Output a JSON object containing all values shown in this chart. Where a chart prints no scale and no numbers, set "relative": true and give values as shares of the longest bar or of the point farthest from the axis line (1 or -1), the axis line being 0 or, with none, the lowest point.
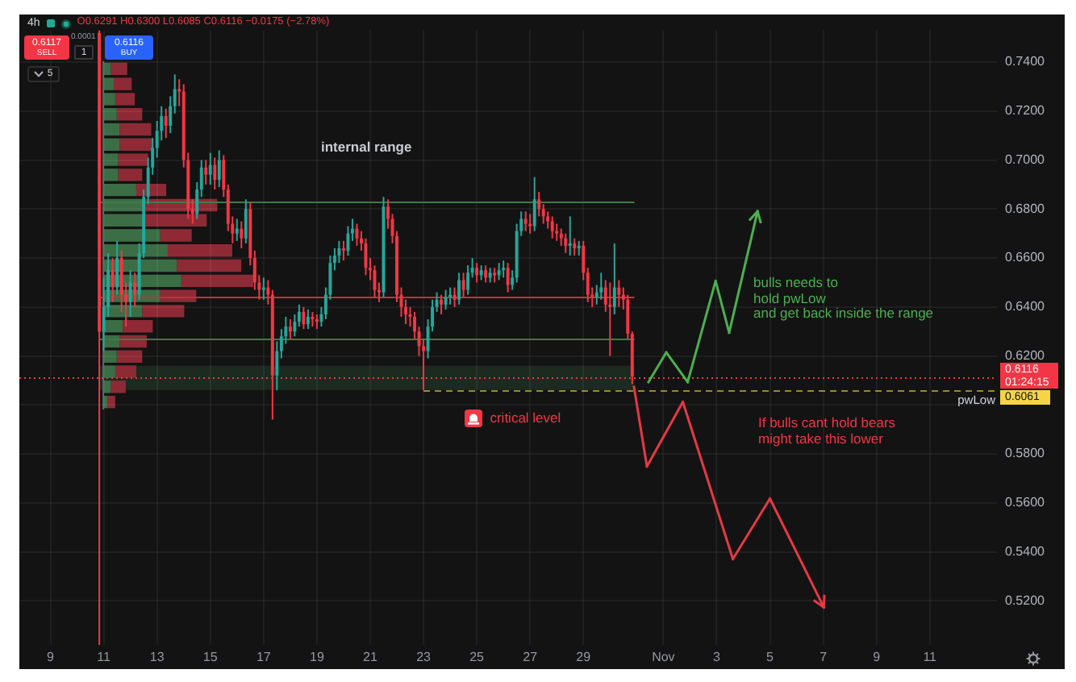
{
  "chart_data": [
    {
      "type": "candlestick",
      "title": "4h",
      "x": [
        "--10-10T20:00",
        "--10-11T00:00",
        "--10-11T04:00",
        "--10-11T08:00",
        "--10-11T12:00",
        "--10-11T16:00",
        "--10-11T20:00",
        "--10-12T00:00",
        "--10-12T04:00",
        "--10-12T08:00",
        "--10-12T12:00",
        "--10-12T16:00",
        "--10-12T20:00",
        "--10-13T00:00",
        "--10-13T04:00",
        "--10-13T08:00",
        "--10-13T12:00",
        "--10-13T16:00",
        "--10-13T20:00",
        "--10-14T00:00",
        "--10-14T04:00",
        "--10-14T08:00",
        "--10-14T12:00",
        "--10-14T16:00",
        "--10-14T20:00",
        "--10-15T00:00",
        "--10-15T04:00",
        "--10-15T08:00",
        "--10-15T12:00",
        "--10-15T16:00",
        "--10-15T20:00",
        "--10-16T00:00",
        "--10-16T04:00",
        "--10-16T08:00",
        "--10-16T12:00",
        "--10-16T16:00",
        "--10-16T20:00",
        "--10-17T00:00",
        "--10-17T04:00",
        "--10-17T08:00",
        "--10-17T12:00",
        "--10-17T16:00",
        "--10-17T20:00",
        "--10-18T00:00",
        "--10-18T04:00",
        "--10-18T08:00",
        "--10-18T12:00",
        "--10-18T16:00",
        "--10-18T20:00",
        "--10-19T00:00",
        "--10-19T04:00",
        "--10-19T08:00",
        "--10-19T12:00",
        "--10-19T16:00",
        "--10-19T20:00",
        "--10-20T00:00",
        "--10-20T04:00",
        "--10-20T08:00",
        "--10-20T12:00",
        "--10-20T16:00",
        "--10-20T20:00",
        "--10-21T00:00",
        "--10-21T04:00",
        "--10-21T08:00",
        "--10-21T12:00",
        "--10-21T16:00",
        "--10-21T20:00",
        "--10-22T00:00",
        "--10-22T04:00",
        "--10-22T08:00",
        "--10-22T12:00",
        "--10-22T16:00",
        "--10-22T20:00",
        "--10-23T00:00",
        "--10-23T04:00",
        "--10-23T08:00",
        "--10-23T12:00",
        "--10-23T16:00",
        "--10-23T20:00",
        "--10-24T00:00",
        "--10-24T04:00",
        "--10-24T08:00",
        "--10-24T12:00",
        "--10-24T16:00",
        "--10-24T20:00",
        "--10-25T00:00",
        "--10-25T04:00",
        "--10-25T08:00",
        "--10-25T12:00",
        "--10-25T16:00",
        "--10-25T20:00",
        "--10-26T00:00",
        "--10-26T04:00",
        "--10-26T08:00",
        "--10-26T12:00",
        "--10-26T16:00",
        "--10-26T20:00",
        "--10-27T00:00",
        "--10-27T04:00",
        "--10-27T08:00",
        "--10-27T12:00",
        "--10-27T16:00",
        "--10-27T20:00",
        "--10-28T00:00",
        "--10-28T04:00",
        "--10-28T08:00",
        "--10-28T12:00",
        "--10-28T16:00",
        "--10-28T20:00",
        "--10-29T00:00",
        "--10-29T04:00",
        "--10-29T08:00",
        "--10-29T12:00",
        "--10-29T16:00",
        "--10-29T20:00",
        "--10-30T00:00",
        "--10-30T04:00",
        "--10-30T08:00",
        "--10-30T12:00",
        "--10-30T16:00",
        "--10-30T20:00"
      ],
      "ohlc": [
        [
          0.752,
          0.753,
          0.502,
          0.63
        ],
        [
          0.63,
          0.652,
          0.622,
          0.64
        ],
        [
          0.64,
          0.662,
          0.636,
          0.655
        ],
        [
          0.655,
          0.66,
          0.642,
          0.648
        ],
        [
          0.648,
          0.667,
          0.645,
          0.66
        ],
        [
          0.66,
          0.663,
          0.638,
          0.645
        ],
        [
          0.645,
          0.65,
          0.632,
          0.642
        ],
        [
          0.642,
          0.655,
          0.636,
          0.65
        ],
        [
          0.65,
          0.654,
          0.64,
          0.645
        ],
        [
          0.645,
          0.666,
          0.643,
          0.662
        ],
        [
          0.662,
          0.688,
          0.66,
          0.685
        ],
        [
          0.685,
          0.701,
          0.682,
          0.697
        ],
        [
          0.697,
          0.709,
          0.694,
          0.705
        ],
        [
          0.705,
          0.716,
          0.701,
          0.712
        ],
        [
          0.712,
          0.722,
          0.708,
          0.718
        ],
        [
          0.718,
          0.721,
          0.709,
          0.714
        ],
        [
          0.714,
          0.726,
          0.711,
          0.722
        ],
        [
          0.722,
          0.735,
          0.719,
          0.729
        ],
        [
          0.729,
          0.733,
          0.722,
          0.728
        ],
        [
          0.728,
          0.731,
          0.697,
          0.7
        ],
        [
          0.7,
          0.703,
          0.676,
          0.68
        ],
        [
          0.68,
          0.684,
          0.674,
          0.678
        ],
        [
          0.678,
          0.691,
          0.676,
          0.688
        ],
        [
          0.688,
          0.7,
          0.685,
          0.697
        ],
        [
          0.697,
          0.7,
          0.69,
          0.694
        ],
        [
          0.694,
          0.703,
          0.69,
          0.698
        ],
        [
          0.698,
          0.701,
          0.688,
          0.692
        ],
        [
          0.692,
          0.704,
          0.689,
          0.7
        ],
        [
          0.7,
          0.702,
          0.685,
          0.688
        ],
        [
          0.688,
          0.69,
          0.671,
          0.674
        ],
        [
          0.674,
          0.677,
          0.666,
          0.67
        ],
        [
          0.67,
          0.676,
          0.667,
          0.672
        ],
        [
          0.672,
          0.675,
          0.664,
          0.668
        ],
        [
          0.668,
          0.684,
          0.666,
          0.68
        ],
        [
          0.68,
          0.683,
          0.657,
          0.66
        ],
        [
          0.66,
          0.663,
          0.647,
          0.65
        ],
        [
          0.65,
          0.653,
          0.643,
          0.647
        ],
        [
          0.647,
          0.652,
          0.643,
          0.648
        ],
        [
          0.648,
          0.651,
          0.641,
          0.645
        ],
        [
          0.645,
          0.647,
          0.594,
          0.612
        ],
        [
          0.612,
          0.626,
          0.606,
          0.622
        ],
        [
          0.622,
          0.631,
          0.619,
          0.628
        ],
        [
          0.628,
          0.636,
          0.625,
          0.632
        ],
        [
          0.632,
          0.635,
          0.627,
          0.63
        ],
        [
          0.63,
          0.637,
          0.628,
          0.634
        ],
        [
          0.634,
          0.641,
          0.632,
          0.638
        ],
        [
          0.638,
          0.64,
          0.631,
          0.633
        ],
        [
          0.633,
          0.639,
          0.631,
          0.636
        ],
        [
          0.636,
          0.638,
          0.632,
          0.635
        ],
        [
          0.635,
          0.637,
          0.631,
          0.634
        ],
        [
          0.634,
          0.64,
          0.632,
          0.637
        ],
        [
          0.637,
          0.648,
          0.635,
          0.645
        ],
        [
          0.645,
          0.661,
          0.643,
          0.658
        ],
        [
          0.658,
          0.664,
          0.655,
          0.661
        ],
        [
          0.661,
          0.667,
          0.658,
          0.664
        ],
        [
          0.664,
          0.667,
          0.659,
          0.663
        ],
        [
          0.663,
          0.673,
          0.661,
          0.67
        ],
        [
          0.67,
          0.676,
          0.667,
          0.672
        ],
        [
          0.672,
          0.674,
          0.665,
          0.668
        ],
        [
          0.668,
          0.671,
          0.663,
          0.666
        ],
        [
          0.666,
          0.668,
          0.653,
          0.656
        ],
        [
          0.656,
          0.66,
          0.651,
          0.655
        ],
        [
          0.655,
          0.657,
          0.644,
          0.647
        ],
        [
          0.647,
          0.65,
          0.642,
          0.646
        ],
        [
          0.646,
          0.685,
          0.644,
          0.681
        ],
        [
          0.681,
          0.684,
          0.672,
          0.676
        ],
        [
          0.676,
          0.678,
          0.666,
          0.669
        ],
        [
          0.669,
          0.671,
          0.642,
          0.645
        ],
        [
          0.645,
          0.648,
          0.636,
          0.64
        ],
        [
          0.64,
          0.643,
          0.633,
          0.637
        ],
        [
          0.637,
          0.64,
          0.632,
          0.636
        ],
        [
          0.636,
          0.638,
          0.627,
          0.63
        ],
        [
          0.63,
          0.632,
          0.62,
          0.624
        ],
        [
          0.624,
          0.627,
          0.6061,
          0.622
        ],
        [
          0.622,
          0.635,
          0.619,
          0.632
        ],
        [
          0.632,
          0.643,
          0.63,
          0.64
        ],
        [
          0.64,
          0.646,
          0.638,
          0.643
        ],
        [
          0.643,
          0.645,
          0.637,
          0.641
        ],
        [
          0.641,
          0.647,
          0.639,
          0.644
        ],
        [
          0.644,
          0.648,
          0.641,
          0.645
        ],
        [
          0.645,
          0.648,
          0.64,
          0.643
        ],
        [
          0.643,
          0.654,
          0.641,
          0.651
        ],
        [
          0.651,
          0.654,
          0.644,
          0.647
        ],
        [
          0.647,
          0.657,
          0.645,
          0.654
        ],
        [
          0.654,
          0.66,
          0.652,
          0.656
        ],
        [
          0.656,
          0.658,
          0.65,
          0.653
        ],
        [
          0.653,
          0.657,
          0.651,
          0.655
        ],
        [
          0.655,
          0.657,
          0.65,
          0.652
        ],
        [
          0.652,
          0.656,
          0.65,
          0.654
        ],
        [
          0.654,
          0.656,
          0.65,
          0.653
        ],
        [
          0.653,
          0.658,
          0.651,
          0.655
        ],
        [
          0.655,
          0.659,
          0.652,
          0.656
        ],
        [
          0.656,
          0.658,
          0.646,
          0.649
        ],
        [
          0.649,
          0.655,
          0.647,
          0.652
        ],
        [
          0.652,
          0.674,
          0.65,
          0.671
        ],
        [
          0.671,
          0.679,
          0.669,
          0.676
        ],
        [
          0.676,
          0.679,
          0.671,
          0.674
        ],
        [
          0.674,
          0.678,
          0.67,
          0.673
        ],
        [
          0.673,
          0.693,
          0.671,
          0.684
        ],
        [
          0.684,
          0.687,
          0.677,
          0.68
        ],
        [
          0.68,
          0.682,
          0.674,
          0.677
        ],
        [
          0.677,
          0.679,
          0.672,
          0.675
        ],
        [
          0.675,
          0.677,
          0.668,
          0.671
        ],
        [
          0.671,
          0.674,
          0.667,
          0.67
        ],
        [
          0.67,
          0.672,
          0.665,
          0.668
        ],
        [
          0.668,
          0.67,
          0.662,
          0.665
        ],
        [
          0.665,
          0.677,
          0.661,
          0.666
        ],
        [
          0.666,
          0.668,
          0.661,
          0.664
        ],
        [
          0.664,
          0.667,
          0.661,
          0.665
        ],
        [
          0.665,
          0.667,
          0.651,
          0.654
        ],
        [
          0.654,
          0.656,
          0.642,
          0.645
        ],
        [
          0.645,
          0.648,
          0.64,
          0.644
        ],
        [
          0.644,
          0.649,
          0.641,
          0.646
        ],
        [
          0.646,
          0.654,
          0.643,
          0.648
        ],
        [
          0.648,
          0.651,
          0.638,
          0.641
        ],
        [
          0.641,
          0.65,
          0.62,
          0.64
        ],
        [
          0.64,
          0.666,
          0.637,
          0.648
        ],
        [
          0.648,
          0.651,
          0.64,
          0.645
        ],
        [
          0.645,
          0.648,
          0.639,
          0.643
        ],
        [
          0.643,
          0.645,
          0.627,
          0.6291
        ],
        [
          0.6291,
          0.63,
          0.6085,
          0.6116
        ]
      ],
      "xlim": [
        "--10-07T20:00",
        "--11-13T12:30"
      ],
      "xticks": [
        {
          "value": "--10-09",
          "label": "9"
        },
        {
          "value": "--10-11",
          "label": "11"
        },
        {
          "value": "--10-13",
          "label": "13"
        },
        {
          "value": "--10-15",
          "label": "15"
        },
        {
          "value": "--10-17",
          "label": "17"
        },
        {
          "value": "--10-19",
          "label": "19"
        },
        {
          "value": "--10-21",
          "label": "21"
        },
        {
          "value": "--10-23",
          "label": "23"
        },
        {
          "value": "--10-25",
          "label": "25"
        },
        {
          "value": "--10-27",
          "label": "27"
        },
        {
          "value": "--10-29",
          "label": "29"
        },
        {
          "value": "--11-01",
          "label": "Nov"
        },
        {
          "value": "--11-03",
          "label": "3"
        },
        {
          "value": "--11-05",
          "label": "5"
        },
        {
          "value": "--11-07",
          "label": "7"
        },
        {
          "value": "--11-09",
          "label": "9"
        },
        {
          "value": "--11-11",
          "label": "11"
        }
      ],
      "ylim": [
        0.502,
        0.753
      ],
      "yticks": [
        {
          "value": 0.52,
          "label": "0.5200"
        },
        {
          "value": 0.54,
          "label": "0.5400"
        },
        {
          "value": 0.56,
          "label": "0.5600"
        },
        {
          "value": 0.58,
          "label": "0.5800"
        },
        {
          "value": 0.6,
          "label": null
        },
        {
          "value": 0.62,
          "label": "0.6200"
        },
        {
          "value": 0.64,
          "label": "0.6400"
        },
        {
          "value": 0.66,
          "label": "0.6600"
        },
        {
          "value": 0.68,
          "label": "0.6800"
        },
        {
          "value": 0.7,
          "label": "0.7000"
        },
        {
          "value": 0.72,
          "label": "0.7200"
        },
        {
          "value": 0.74,
          "label": "0.7400"
        }
      ],
      "grid": true,
      "ref_lines": [
        {
          "axis": "y",
          "value": 0.683,
          "color": "#3f7a46"
        },
        {
          "axis": "y",
          "value": 0.644,
          "color": "#c62e3c"
        },
        {
          "axis": "y",
          "value": 0.627,
          "color": "#3f7a46"
        },
        {
          "axis": "y",
          "value": 0.6116,
          "color": "#f23645",
          "line_style": "dotted"
        },
        {
          "axis": "y",
          "value": 0.6061,
          "label": "pwLow",
          "color": "#f5d547",
          "line_style": "dashed"
        }
      ],
      "bands": [
        {
          "axis": "y",
          "from": 0.6061,
          "to": 0.616,
          "label": "critical level",
          "color": "#1c2a20"
        }
      ],
      "annotations": [
        "O0.6291 H0.6300 L0.6085 C0.6116 −0.0175 (−2.78%)",
        "0.6117",
        "SELL",
        "0.0001",
        "1",
        "0.6116",
        "BUY",
        "5",
        "internal range",
        "bulls needs to\nhold pwLow\nand get back inside the range",
        "If bulls cant hold bears\nmight take this lower",
        "0.6116",
        "01:24:15",
        "0.6061"
      ]
    },
    {
      "type": "bar",
      "orientation": "horizontal",
      "stacked": true,
      "relative": true,
      "categories": [
        null,
        null,
        null,
        null,
        null,
        null,
        null,
        null,
        null,
        null,
        null,
        null,
        null,
        null,
        null,
        null,
        null,
        null,
        null,
        null,
        null,
        null,
        null
      ],
      "series": [
        {
          "color": "#3b6e45",
          "values": [
            0.05,
            0.07,
            0.08,
            0.09,
            0.11,
            0.11,
            0.1,
            0.1,
            0.22,
            0.27,
            0.28,
            0.38,
            0.43,
            0.49,
            0.52,
            0.38,
            0.26,
            0.13,
            0.11,
            0.09,
            0.08,
            0.05,
            0.03
          ]
        },
        {
          "color": "#8e2a35",
          "values": [
            0.11,
            0.12,
            0.13,
            0.17,
            0.21,
            0.22,
            0.2,
            0.16,
            0.2,
            0.49,
            0.41,
            0.21,
            0.43,
            0.43,
            0.48,
            0.24,
            0.28,
            0.2,
            0.18,
            0.17,
            0.14,
            0.1,
            0.05
          ]
        }
      ]
    }
  ]
}
